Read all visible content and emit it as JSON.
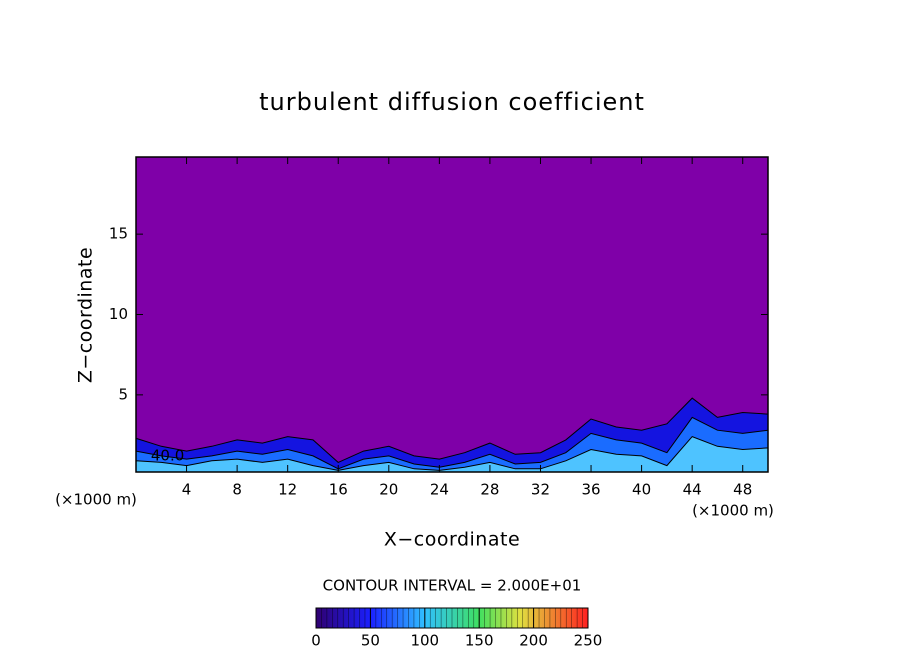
{
  "chart_data": {
    "type": "contour",
    "title": "turbulent diffusion coefficient",
    "xlabel": "X−coordinate",
    "ylabel": "Z−coordinate",
    "x_unit": "(×1000 m)",
    "y_unit": "(×1000 m)",
    "xlim": [
      0,
      50
    ],
    "ylim": [
      0.2,
      19.8
    ],
    "xticks": [
      4,
      8,
      12,
      16,
      20,
      24,
      28,
      32,
      36,
      40,
      44,
      48
    ],
    "yticks": [
      5,
      10,
      15
    ],
    "background_color": "#7f00a8",
    "x": [
      0,
      2,
      4,
      6,
      8,
      10,
      12,
      14,
      16,
      18,
      20,
      22,
      24,
      26,
      28,
      30,
      32,
      34,
      36,
      38,
      40,
      42,
      44,
      46,
      48,
      50
    ],
    "series": [
      {
        "color": "#1414e0",
        "values": [
          2.3,
          1.8,
          1.5,
          1.8,
          2.2,
          2.0,
          2.4,
          2.2,
          0.8,
          1.5,
          1.8,
          1.2,
          1.0,
          1.4,
          2.0,
          1.3,
          1.4,
          2.2,
          3.5,
          3.0,
          2.8,
          3.2,
          4.8,
          3.6,
          3.9,
          3.8
        ]
      },
      {
        "color": "#1a6cff",
        "values": [
          1.5,
          1.2,
          1.0,
          1.2,
          1.5,
          1.3,
          1.6,
          1.2,
          0.4,
          1.0,
          1.2,
          0.7,
          0.5,
          0.8,
          1.3,
          0.7,
          0.8,
          1.4,
          2.6,
          2.2,
          2.0,
          1.4,
          3.6,
          2.8,
          2.6,
          2.8
        ]
      },
      {
        "color": "#4ec3ff",
        "values": [
          0.9,
          0.8,
          0.6,
          0.9,
          1.0,
          0.8,
          1.0,
          0.6,
          0.3,
          0.6,
          0.8,
          0.4,
          0.3,
          0.5,
          0.8,
          0.4,
          0.4,
          0.9,
          1.6,
          1.3,
          1.2,
          0.6,
          2.4,
          1.8,
          1.6,
          1.7
        ]
      }
    ],
    "contour_label": {
      "text": "40.0",
      "x": 2.5,
      "y": 1.2
    },
    "contour_interval": "CONTOUR INTERVAL = 2.000E+01",
    "colorbar": {
      "lim": [
        0,
        250
      ],
      "ticks": [
        0,
        50,
        100,
        150,
        200,
        250
      ]
    }
  }
}
